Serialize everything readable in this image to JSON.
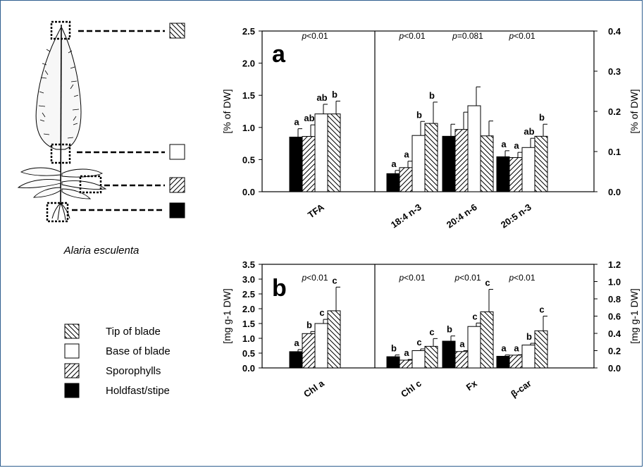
{
  "species": "Alaria esculenta",
  "legend": [
    {
      "label": "Tip of blade",
      "pattern": "hatch-back"
    },
    {
      "label": "Base of blade",
      "pattern": "open"
    },
    {
      "label": "Sporophylls",
      "pattern": "hatch-fwd"
    },
    {
      "label": "Holdfast/stipe",
      "pattern": "solid"
    }
  ],
  "colors": {
    "frame": "#2f5f8f",
    "ink": "#000000"
  },
  "chart_data": [
    {
      "type": "bar",
      "panel": "a",
      "series": [
        "Holdfast/stipe",
        "Sporophylls",
        "Base of blade",
        "Tip of blade"
      ],
      "left_axis": {
        "label": "[% of DW]",
        "ylim": [
          0,
          2.5
        ],
        "ticks": [
          "0.0",
          "0.5",
          "1.0",
          "1.5",
          "2.0",
          "2.5"
        ]
      },
      "right_axis": {
        "label": "[% of DW]",
        "ylim": [
          0,
          0.4
        ],
        "ticks": [
          "0.0",
          "0.1",
          "0.2",
          "0.3",
          "0.4"
        ]
      },
      "groups": [
        {
          "category": "TFA",
          "axis": "left",
          "p": "p<0.01",
          "values": [
            0.85,
            0.86,
            1.21,
            1.21
          ],
          "errors": [
            0.13,
            0.18,
            0.15,
            0.2
          ],
          "letters": [
            "a",
            "ab",
            "ab",
            "b"
          ]
        },
        {
          "category": "18:4 n-3",
          "axis": "right",
          "p": "p<0.01",
          "values": [
            0.045,
            0.06,
            0.14,
            0.17
          ],
          "errors": [
            0.008,
            0.016,
            0.035,
            0.053
          ],
          "letters": [
            "a",
            "a",
            "b",
            "b"
          ]
        },
        {
          "category": "20:4 n-6",
          "axis": "right",
          "p": "p=0.081",
          "values": [
            0.138,
            0.155,
            0.214,
            0.139
          ],
          "errors": [
            0.03,
            0.043,
            0.047,
            0.037
          ],
          "letters": [
            "",
            "",
            "",
            ""
          ]
        },
        {
          "category": "20:5 n-3",
          "axis": "right",
          "p": "p<0.01",
          "values": [
            0.087,
            0.085,
            0.11,
            0.138
          ],
          "errors": [
            0.015,
            0.013,
            0.023,
            0.03
          ],
          "letters": [
            "a",
            "a",
            "ab",
            "b"
          ]
        }
      ]
    },
    {
      "type": "bar",
      "panel": "b",
      "series": [
        "Holdfast/stipe",
        "Sporophylls",
        "Base of blade",
        "Tip of blade"
      ],
      "left_axis": {
        "label": "[mg g-1 DW]",
        "ylim": [
          0,
          3.5
        ],
        "ticks": [
          "0.0",
          "0.5",
          "1.0",
          "1.5",
          "2.0",
          "2.5",
          "3.0",
          "3.5"
        ]
      },
      "right_axis": {
        "label": "[mg g-1 DW]",
        "ylim": [
          0,
          1.2
        ],
        "ticks": [
          "0.0",
          "0.2",
          "0.4",
          "0.6",
          "0.8",
          "1.0",
          "1.2"
        ]
      },
      "groups": [
        {
          "category": "Chl a",
          "axis": "left",
          "p": "p<0.01",
          "values": [
            0.55,
            1.16,
            1.5,
            1.93
          ],
          "errors": [
            0.07,
            0.07,
            0.14,
            0.8
          ],
          "letters": [
            "a",
            "b",
            "c",
            "c"
          ]
        },
        {
          "category": "Chl c",
          "axis": "right",
          "p": "p<0.01",
          "values": [
            0.13,
            0.09,
            0.2,
            0.25
          ],
          "errors": [
            0.02,
            0.008,
            0.02,
            0.09
          ],
          "letters": [
            "b",
            "a",
            "c",
            "c"
          ]
        },
        {
          "category": "Fx",
          "axis": "right",
          "p": "p<0.01",
          "values": [
            0.31,
            0.19,
            0.48,
            0.65
          ],
          "errors": [
            0.06,
            0.01,
            0.04,
            0.26
          ],
          "letters": [
            "b",
            "a",
            "c",
            "c"
          ]
        },
        {
          "category": "β-car",
          "axis": "right",
          "p": "p<0.01",
          "values": [
            0.135,
            0.148,
            0.265,
            0.43
          ],
          "errors": [
            0.015,
            0.005,
            0.02,
            0.17
          ],
          "letters": [
            "a",
            "a",
            "b",
            "c"
          ]
        }
      ]
    }
  ]
}
